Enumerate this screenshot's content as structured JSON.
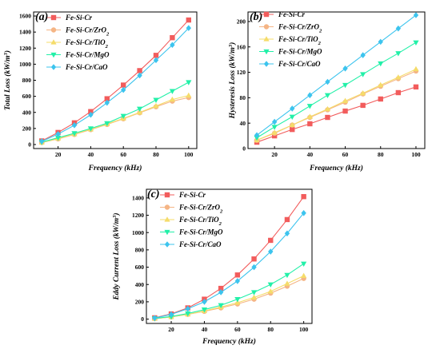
{
  "chart_data": [
    {
      "type": "line",
      "panel": "(a)",
      "xlabel": "Frequency (kHz)",
      "ylabel_main": "Total Loss (kW/m",
      "ylabel_sup": "3",
      "ylabel_end": ")",
      "xlim": [
        5,
        105
      ],
      "ylim": [
        -50,
        1650
      ],
      "xticks": [
        20,
        40,
        60,
        80,
        100
      ],
      "yticks": [
        0,
        200,
        400,
        600,
        800,
        1000,
        1200,
        1400,
        1600
      ],
      "x": [
        10,
        20,
        30,
        40,
        50,
        60,
        70,
        80,
        90,
        100
      ],
      "series": [
        {
          "name": "Fe-Si-Cr",
          "name_main": "Fe-Si-Cr",
          "name_sub": "",
          "color": "#f25c5c",
          "marker": "square",
          "values": [
            45,
            150,
            270,
            410,
            570,
            740,
            920,
            1110,
            1330,
            1550
          ]
        },
        {
          "name": "Fe-Si-Cr/ZrO2",
          "name_main": "Fe-Si-Cr/ZrO",
          "name_sub": "2",
          "color": "#f5b585",
          "marker": "circle",
          "values": [
            25,
            70,
            125,
            185,
            250,
            320,
            395,
            470,
            540,
            585
          ]
        },
        {
          "name": "Fe-Si-Cr/TiO2",
          "name_main": "Fe-Si-Cr/TiO",
          "name_sub": "2",
          "color": "#f5dc6a",
          "marker": "triangle-up",
          "values": [
            25,
            75,
            130,
            190,
            255,
            325,
            400,
            480,
            560,
            610
          ]
        },
        {
          "name": "Fe-Si-Cr/MgO",
          "name_main": "Fe-Si-Cr/MgO",
          "name_sub": "",
          "color": "#22f0a8",
          "marker": "triangle-down",
          "values": [
            30,
            85,
            140,
            200,
            265,
            355,
            445,
            555,
            665,
            775
          ]
        },
        {
          "name": "Fe-Si-Cr/CaO",
          "name_main": "Fe-Si-Cr/CaO",
          "name_sub": "",
          "color": "#3cc4ee",
          "marker": "diamond",
          "values": [
            40,
            130,
            240,
            370,
            520,
            680,
            860,
            1050,
            1240,
            1450
          ]
        }
      ]
    },
    {
      "type": "line",
      "panel": "(b)",
      "xlabel": "Frequency (kHz)",
      "ylabel_main": "Hysteresis Loss (kW/m",
      "ylabel_sup": "3",
      "ylabel_end": ")",
      "xlim": [
        5,
        105
      ],
      "ylim": [
        0,
        215
      ],
      "xticks": [
        20,
        40,
        60,
        80,
        100
      ],
      "yticks": [
        0,
        40,
        80,
        120,
        160,
        200
      ],
      "x": [
        10,
        20,
        30,
        40,
        50,
        60,
        70,
        80,
        90,
        100
      ],
      "series": [
        {
          "name": "Fe-Si-Cr",
          "name_main": "Fe-Si-Cr",
          "name_sub": "",
          "color": "#f25c5c",
          "marker": "square",
          "values": [
            10,
            20,
            30,
            39,
            49,
            59,
            68,
            78,
            88,
            97
          ]
        },
        {
          "name": "Fe-Si-Cr/ZrO2",
          "name_main": "Fe-Si-Cr/ZrO",
          "name_sub": "2",
          "color": "#f5b585",
          "marker": "circle",
          "values": [
            13,
            24,
            37,
            49,
            61,
            73,
            86,
            98,
            110,
            122
          ]
        },
        {
          "name": "Fe-Si-Cr/TiO2",
          "name_main": "Fe-Si-Cr/TiO",
          "name_sub": "2",
          "color": "#f5dc6a",
          "marker": "triangle-up",
          "values": [
            13,
            25,
            37,
            50,
            62,
            75,
            87,
            100,
            112,
            125
          ]
        },
        {
          "name": "Fe-Si-Cr/MgO",
          "name_main": "Fe-Si-Cr/MgO",
          "name_sub": "",
          "color": "#22f0a8",
          "marker": "triangle-down",
          "values": [
            17,
            34,
            50,
            67,
            84,
            100,
            117,
            134,
            150,
            167
          ]
        },
        {
          "name": "Fe-Si-Cr/CaO",
          "name_main": "Fe-Si-Cr/CaO",
          "name_sub": "",
          "color": "#3cc4ee",
          "marker": "diamond",
          "values": [
            21,
            42,
            63,
            84,
            105,
            126,
            147,
            168,
            189,
            210
          ]
        }
      ]
    },
    {
      "type": "line",
      "panel": "(c)",
      "xlabel": "Frequency (kHz)",
      "ylabel_main": "Eddy Current Loss (kW/m",
      "ylabel_sup": "3",
      "ylabel_end": ")",
      "xlim": [
        5,
        105
      ],
      "ylim": [
        -50,
        1500
      ],
      "xticks": [
        20,
        40,
        60,
        80,
        100
      ],
      "yticks": [
        0,
        200,
        400,
        600,
        800,
        1000,
        1200,
        1400
      ],
      "x": [
        10,
        20,
        30,
        40,
        50,
        60,
        70,
        80,
        90,
        100
      ],
      "series": [
        {
          "name": "Fe-Si-Cr",
          "name_main": "Fe-Si-Cr",
          "name_sub": "",
          "color": "#f25c5c",
          "marker": "square",
          "values": [
            15,
            60,
            130,
            230,
            355,
            510,
            695,
            910,
            1150,
            1415
          ]
        },
        {
          "name": "Fe-Si-Cr/ZrO2",
          "name_main": "Fe-Si-Cr/ZrO",
          "name_sub": "2",
          "color": "#f5b585",
          "marker": "circle",
          "values": [
            5,
            25,
            55,
            90,
            130,
            175,
            230,
            300,
            380,
            470
          ]
        },
        {
          "name": "Fe-Si-Cr/TiO2",
          "name_main": "Fe-Si-Cr/TiO",
          "name_sub": "2",
          "color": "#f5dc6a",
          "marker": "triangle-up",
          "values": [
            5,
            25,
            55,
            95,
            140,
            190,
            250,
            320,
            410,
            500
          ]
        },
        {
          "name": "Fe-Si-Cr/MgO",
          "name_main": "Fe-Si-Cr/MgO",
          "name_sub": "",
          "color": "#22f0a8",
          "marker": "triangle-down",
          "values": [
            8,
            30,
            65,
            110,
            160,
            230,
            310,
            400,
            510,
            640
          ]
        },
        {
          "name": "Fe-Si-Cr/CaO",
          "name_main": "Fe-Si-Cr/CaO",
          "name_sub": "",
          "color": "#3cc4ee",
          "marker": "diamond",
          "values": [
            12,
            55,
            120,
            200,
            310,
            440,
            600,
            780,
            990,
            1225
          ]
        }
      ]
    }
  ]
}
